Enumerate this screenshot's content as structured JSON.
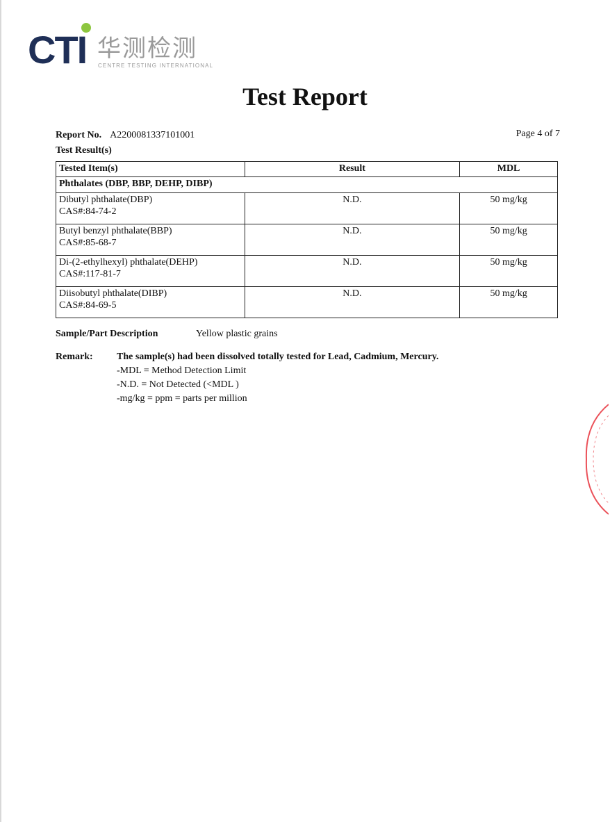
{
  "logo": {
    "brand": "CTI",
    "chinese": "华测检测",
    "english": "CENTRE TESTING INTERNATIONAL"
  },
  "title": "Test Report",
  "report_no_label": "Report No.",
  "report_no": "A2200081337101001",
  "page": "Page 4 of 7",
  "section": "Test Result(s)",
  "table": {
    "headers": [
      "Tested Item(s)",
      "Result",
      "MDL"
    ],
    "group": "Phthalates (DBP, BBP, DEHP, DIBP)",
    "rows": [
      {
        "name": "Dibutyl phthalate(DBP)",
        "cas": "CAS#:84-74-2",
        "result": "N.D.",
        "mdl": "50 mg/kg"
      },
      {
        "name": "Butyl benzyl phthalate(BBP)",
        "cas": "CAS#:85-68-7",
        "result": "N.D.",
        "mdl": "50 mg/kg"
      },
      {
        "name": "Di-(2-ethylhexyl) phthalate(DEHP)",
        "cas": "CAS#:117-81-7",
        "result": "N.D.",
        "mdl": "50 mg/kg"
      },
      {
        "name": "Diisobutyl phthalate(DIBP)",
        "cas": "CAS#:84-69-5",
        "result": "N.D.",
        "mdl": "50 mg/kg"
      }
    ]
  },
  "sample": {
    "label": "Sample/Part Description",
    "value": "Yellow plastic grains"
  },
  "remark": {
    "label": "Remark:",
    "lines": [
      "The sample(s) had been dissolved totally tested for Lead, Cadmium, Mercury.",
      "-MDL = Method Detection Limit",
      "-N.D. = Not Detected (<MDL )",
      "-mg/kg = ppm = parts per million"
    ]
  },
  "colors": {
    "brand_navy": "#1f2f57",
    "brand_green": "#8dc63f",
    "stamp_red": "#e8323c"
  }
}
